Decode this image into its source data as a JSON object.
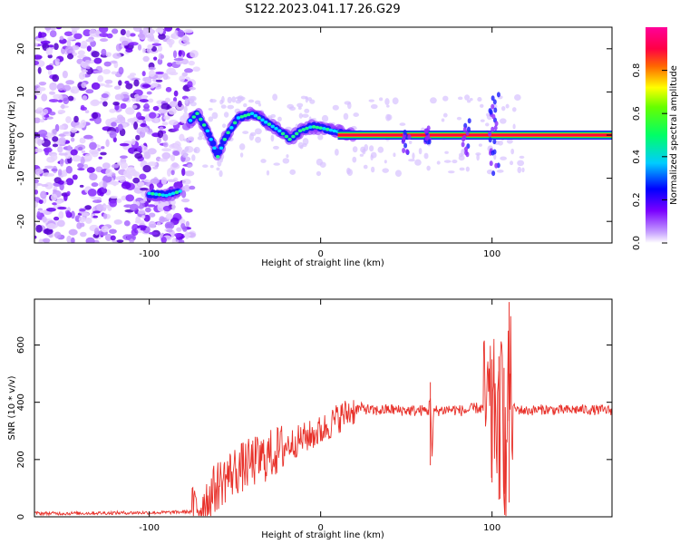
{
  "figure": {
    "title": "S122.2023.041.17.26.G29"
  },
  "chart_data": [
    {
      "type": "heatmap",
      "xlabel": "Height of straight line (km)",
      "ylabel": "Frequency (Hz)",
      "xlim": [
        -167,
        170
      ],
      "ylim": [
        -25,
        25
      ],
      "x_ticks": [
        -100,
        0,
        100
      ],
      "y_ticks": [
        -20,
        -10,
        0,
        10,
        20
      ],
      "grid": false,
      "colorbar": {
        "label": "Normalized spectral amplitude",
        "range": [
          0.0,
          1.0
        ],
        "ticks": [
          0.0,
          0.2,
          0.4,
          0.6,
          0.8
        ],
        "colormap": [
          "#ffffff",
          "#7a00ff",
          "#0000ff",
          "#00ccff",
          "#00ff66",
          "#ffff00",
          "#ff6600",
          "#ff0044",
          "#ff0099"
        ]
      },
      "ridge": [
        {
          "x": -100,
          "f": -13.5
        },
        {
          "x": -90,
          "f": -14
        },
        {
          "x": -82,
          "f": -13
        },
        {
          "x": -77,
          "f": 3
        },
        {
          "x": -72,
          "f": 5
        },
        {
          "x": -66,
          "f": 1
        },
        {
          "x": -60,
          "f": -5
        },
        {
          "x": -55,
          "f": 0
        },
        {
          "x": -48,
          "f": 4
        },
        {
          "x": -40,
          "f": 5
        },
        {
          "x": -32,
          "f": 3
        },
        {
          "x": -24,
          "f": 1
        },
        {
          "x": -18,
          "f": -1
        },
        {
          "x": -12,
          "f": 1
        },
        {
          "x": -5,
          "f": 2
        },
        {
          "x": 2,
          "f": 1.5
        },
        {
          "x": 10,
          "f": 0.8
        },
        {
          "x": 20,
          "f": 0
        },
        {
          "x": 60,
          "f": 0
        },
        {
          "x": 100,
          "f": 0
        },
        {
          "x": 170,
          "f": 0
        }
      ]
    },
    {
      "type": "line",
      "xlabel": "Height of straight line (km)",
      "ylabel": "SNR (10 * v/v)",
      "xlim": [
        -167,
        170
      ],
      "ylim": [
        0,
        760
      ],
      "x_ticks": [
        -100,
        0,
        100
      ],
      "y_ticks": [
        0,
        200,
        400,
        600
      ],
      "grid": false,
      "series": [
        {
          "color": "#e8312a",
          "x": [
            -167,
            -150,
            -130,
            -110,
            -90,
            -75,
            -70,
            -65,
            -60,
            -55,
            -50,
            -45,
            -40,
            -35,
            -30,
            -25,
            -20,
            -15,
            -10,
            -5,
            0,
            5,
            10,
            15,
            20,
            25,
            30,
            35,
            40,
            45,
            50,
            55,
            60,
            63,
            64,
            65,
            66,
            70,
            75,
            80,
            85,
            90,
            95,
            98,
            100,
            102,
            104,
            106,
            108,
            110,
            112,
            115,
            120,
            130,
            140,
            150,
            160,
            170
          ],
          "y": [
            12,
            12,
            13,
            14,
            15,
            18,
            40,
            70,
            110,
            140,
            160,
            175,
            190,
            200,
            215,
            230,
            250,
            260,
            275,
            285,
            300,
            320,
            345,
            360,
            375,
            380,
            370,
            372,
            375,
            372,
            372,
            370,
            372,
            370,
            430,
            200,
            370,
            372,
            375,
            372,
            370,
            380,
            378,
            380,
            300,
            420,
            250,
            450,
            150,
            500,
            380,
            375,
            370,
            375,
            372,
            375,
            373,
            372
          ]
        }
      ],
      "annotations": [
        {
          "x": 64,
          "y_min": 180,
          "y_max": 470
        },
        {
          "x": 100,
          "y_min": 120,
          "y_max": 550
        },
        {
          "x": 104,
          "y_min": 60,
          "y_max": 560
        },
        {
          "x": 107,
          "y_min": 80,
          "y_max": 520
        },
        {
          "x": 110,
          "y_min": 50,
          "y_max": 750
        }
      ]
    }
  ]
}
